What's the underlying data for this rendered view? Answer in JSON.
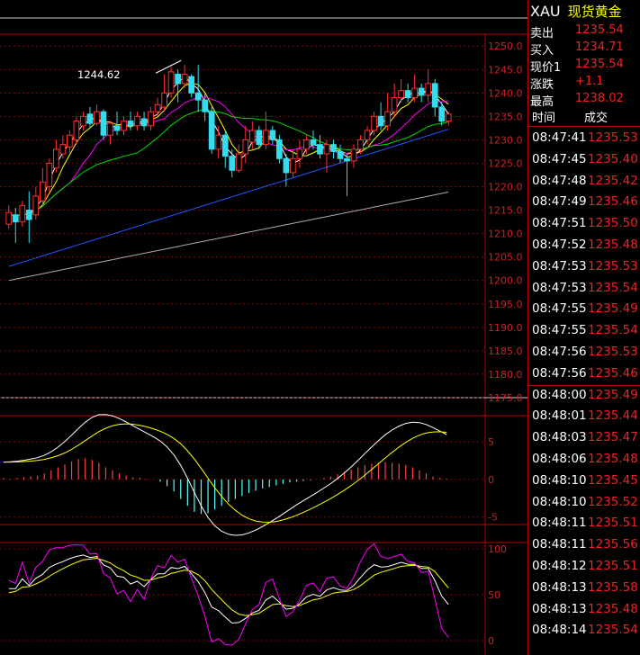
{
  "chart_data": {
    "type": "candlestick",
    "main": {
      "y_ticks": [
        "1250.0",
        "1245.0",
        "1240.0",
        "1235.0",
        "1230.0",
        "1225.0",
        "1220.0",
        "1215.0",
        "1210.0",
        "1205.0",
        "1200.0",
        "1195.0",
        "1190.0",
        "1185.0",
        "1180.0",
        "1175.0"
      ],
      "ylim": [
        1175,
        1251
      ],
      "annotation": "1244.62",
      "candles": [
        {
          "o": 1212.0,
          "c": 1214.5,
          "h": 1216.0,
          "l": 1211.0
        },
        {
          "o": 1214.0,
          "c": 1212.5,
          "h": 1215.5,
          "l": 1208.0
        },
        {
          "o": 1212.5,
          "c": 1216.0,
          "h": 1217.0,
          "l": 1211.5
        },
        {
          "o": 1215.0,
          "c": 1213.0,
          "h": 1219.0,
          "l": 1208.0
        },
        {
          "o": 1214.0,
          "c": 1218.0,
          "h": 1220.0,
          "l": 1213.0
        },
        {
          "o": 1217.0,
          "c": 1221.0,
          "h": 1224.0,
          "l": 1216.0
        },
        {
          "o": 1220.0,
          "c": 1225.0,
          "h": 1226.0,
          "l": 1219.0
        },
        {
          "o": 1224.0,
          "c": 1228.0,
          "h": 1230.0,
          "l": 1223.0
        },
        {
          "o": 1227.0,
          "c": 1229.0,
          "h": 1231.0,
          "l": 1226.0
        },
        {
          "o": 1228.5,
          "c": 1231.0,
          "h": 1232.0,
          "l": 1227.0
        },
        {
          "o": 1230.0,
          "c": 1234.0,
          "h": 1235.0,
          "l": 1229.0
        },
        {
          "o": 1233.0,
          "c": 1235.0,
          "h": 1236.0,
          "l": 1232.0
        },
        {
          "o": 1235.5,
          "c": 1233.5,
          "h": 1237.0,
          "l": 1232.5
        },
        {
          "o": 1233.5,
          "c": 1236.0,
          "h": 1237.5,
          "l": 1233.0
        },
        {
          "o": 1236.0,
          "c": 1231.0,
          "h": 1236.5,
          "l": 1230.0
        },
        {
          "o": 1231.0,
          "c": 1233.5,
          "h": 1234.0,
          "l": 1229.0
        },
        {
          "o": 1233.0,
          "c": 1232.0,
          "h": 1236.0,
          "l": 1231.0
        },
        {
          "o": 1232.0,
          "c": 1234.0,
          "h": 1235.0,
          "l": 1231.0
        },
        {
          "o": 1234.0,
          "c": 1233.0,
          "h": 1236.0,
          "l": 1232.0
        },
        {
          "o": 1233.0,
          "c": 1235.0,
          "h": 1236.0,
          "l": 1232.0
        },
        {
          "o": 1234.5,
          "c": 1233.0,
          "h": 1236.0,
          "l": 1232.0
        },
        {
          "o": 1233.0,
          "c": 1236.0,
          "h": 1237.0,
          "l": 1232.0
        },
        {
          "o": 1236.0,
          "c": 1237.5,
          "h": 1239.0,
          "l": 1235.0
        },
        {
          "o": 1237.0,
          "c": 1240.0,
          "h": 1244.0,
          "l": 1236.0
        },
        {
          "o": 1240.0,
          "c": 1244.5,
          "h": 1245.5,
          "l": 1239.0
        },
        {
          "o": 1244.0,
          "c": 1242.0,
          "h": 1245.0,
          "l": 1238.0
        },
        {
          "o": 1242.0,
          "c": 1244.0,
          "h": 1246.0,
          "l": 1241.0
        },
        {
          "o": 1243.5,
          "c": 1240.0,
          "h": 1244.0,
          "l": 1239.0
        },
        {
          "o": 1240.0,
          "c": 1238.5,
          "h": 1246.0,
          "l": 1236.0
        },
        {
          "o": 1238.5,
          "c": 1236.0,
          "h": 1240.0,
          "l": 1234.0
        },
        {
          "o": 1236.0,
          "c": 1228.0,
          "h": 1237.0,
          "l": 1227.0
        },
        {
          "o": 1228.0,
          "c": 1231.0,
          "h": 1233.0,
          "l": 1226.0
        },
        {
          "o": 1231.0,
          "c": 1226.5,
          "h": 1232.0,
          "l": 1224.0
        },
        {
          "o": 1226.5,
          "c": 1223.5,
          "h": 1228.0,
          "l": 1222.0
        },
        {
          "o": 1223.5,
          "c": 1227.0,
          "h": 1229.0,
          "l": 1223.0
        },
        {
          "o": 1227.0,
          "c": 1230.0,
          "h": 1233.0,
          "l": 1225.0
        },
        {
          "o": 1229.5,
          "c": 1232.0,
          "h": 1234.0,
          "l": 1228.0
        },
        {
          "o": 1232.0,
          "c": 1229.0,
          "h": 1233.0,
          "l": 1228.0
        },
        {
          "o": 1229.0,
          "c": 1232.0,
          "h": 1236.0,
          "l": 1228.0
        },
        {
          "o": 1232.0,
          "c": 1230.0,
          "h": 1233.0,
          "l": 1229.0
        },
        {
          "o": 1230.0,
          "c": 1226.0,
          "h": 1231.0,
          "l": 1225.0
        },
        {
          "o": 1226.0,
          "c": 1223.0,
          "h": 1227.0,
          "l": 1220.0
        },
        {
          "o": 1223.0,
          "c": 1226.0,
          "h": 1228.0,
          "l": 1222.0
        },
        {
          "o": 1226.0,
          "c": 1228.0,
          "h": 1230.0,
          "l": 1224.0
        },
        {
          "o": 1228.0,
          "c": 1230.0,
          "h": 1231.0,
          "l": 1227.0
        },
        {
          "o": 1230.0,
          "c": 1229.0,
          "h": 1232.0,
          "l": 1228.0
        },
        {
          "o": 1229.0,
          "c": 1227.0,
          "h": 1231.0,
          "l": 1226.0
        },
        {
          "o": 1227.0,
          "c": 1229.0,
          "h": 1230.0,
          "l": 1223.0
        },
        {
          "o": 1229.0,
          "c": 1227.5,
          "h": 1230.0,
          "l": 1226.0
        },
        {
          "o": 1227.5,
          "c": 1226.0,
          "h": 1229.0,
          "l": 1225.0
        },
        {
          "o": 1226.0,
          "c": 1225.5,
          "h": 1227.0,
          "l": 1218.0
        },
        {
          "o": 1225.5,
          "c": 1228.0,
          "h": 1229.0,
          "l": 1224.0
        },
        {
          "o": 1228.0,
          "c": 1230.0,
          "h": 1231.0,
          "l": 1227.0
        },
        {
          "o": 1230.0,
          "c": 1232.0,
          "h": 1233.0,
          "l": 1229.0
        },
        {
          "o": 1232.0,
          "c": 1235.0,
          "h": 1236.0,
          "l": 1231.0
        },
        {
          "o": 1235.0,
          "c": 1233.0,
          "h": 1238.0,
          "l": 1232.0
        },
        {
          "o": 1233.0,
          "c": 1236.0,
          "h": 1240.0,
          "l": 1232.0
        },
        {
          "o": 1236.0,
          "c": 1239.0,
          "h": 1242.0,
          "l": 1235.0
        },
        {
          "o": 1239.0,
          "c": 1240.5,
          "h": 1243.0,
          "l": 1238.0
        },
        {
          "o": 1240.5,
          "c": 1239.0,
          "h": 1242.0,
          "l": 1238.0
        },
        {
          "o": 1239.0,
          "c": 1241.0,
          "h": 1244.0,
          "l": 1238.0
        },
        {
          "o": 1241.0,
          "c": 1239.5,
          "h": 1242.0,
          "l": 1238.0
        },
        {
          "o": 1239.5,
          "c": 1242.0,
          "h": 1245.0,
          "l": 1238.0
        },
        {
          "o": 1242.0,
          "c": 1237.0,
          "h": 1243.0,
          "l": 1235.0
        },
        {
          "o": 1237.0,
          "c": 1234.0,
          "h": 1238.0,
          "l": 1233.0
        },
        {
          "o": 1234.0,
          "c": 1235.5,
          "h": 1236.0,
          "l": 1233.0
        }
      ],
      "ma_colors": [
        "#ffffff",
        "#ffff00",
        "#ff00ff",
        "#00dd00",
        "#2255ff",
        "#aaaaaa"
      ]
    },
    "macd": {
      "y_ticks": [
        "5",
        "0",
        "-5"
      ],
      "ylim": [
        -6,
        8
      ],
      "hist": [
        0.2,
        0.1,
        0.2,
        0.3,
        0.4,
        0.5,
        0.8,
        1.2,
        1.6,
        2.0,
        2.4,
        2.7,
        2.8,
        2.6,
        2.2,
        1.6,
        1.2,
        0.8,
        0.5,
        0.3,
        0.2,
        0.1,
        0.0,
        -0.3,
        -0.9,
        -1.6,
        -2.6,
        -3.5,
        -4.3,
        -4.6,
        -4.5,
        -4.0,
        -3.5,
        -3.0,
        -2.6,
        -2.2,
        -1.8,
        -1.5,
        -1.2,
        -1.0,
        -0.8,
        -0.6,
        -0.4,
        -0.3,
        -0.2,
        -0.1,
        0.0,
        0.2,
        0.4,
        0.7,
        1.0,
        1.3,
        1.6,
        1.9,
        2.1,
        2.2,
        2.3,
        2.2,
        2.1,
        1.9,
        1.6,
        1.2,
        0.8,
        0.4,
        0.2,
        0.1
      ]
    },
    "kdj": {
      "y_ticks": [
        "100",
        "50",
        "0"
      ],
      "ylim": [
        0,
        115
      ]
    }
  },
  "quote": {
    "symbol": "XAU",
    "name": "现货黄金",
    "rows": [
      {
        "label": "卖出",
        "value": "1235.54"
      },
      {
        "label": "买入",
        "value": "1234.71"
      },
      {
        "label": "现价1",
        "value": "1235.54"
      },
      {
        "label": "涨跌",
        "value": "+1.1"
      },
      {
        "label": "最高",
        "value": "1238.02"
      }
    ]
  },
  "ticks_header": {
    "time": "时间",
    "price": "成交"
  },
  "ticks": [
    {
      "time": "08:47:41",
      "price": "1235.53"
    },
    {
      "time": "08:47:45",
      "price": "1235.40"
    },
    {
      "time": "08:47:48",
      "price": "1235.42"
    },
    {
      "time": "08:47:49",
      "price": "1235.46"
    },
    {
      "time": "08:47:51",
      "price": "1235.50"
    },
    {
      "time": "08:47:52",
      "price": "1235.48"
    },
    {
      "time": "08:47:53",
      "price": "1235.53"
    },
    {
      "time": "08:47:53",
      "price": "1235.54"
    },
    {
      "time": "08:47:55",
      "price": "1235.49"
    },
    {
      "time": "08:47:55",
      "price": "1235.54"
    },
    {
      "time": "08:47:56",
      "price": "1235.53"
    },
    {
      "time": "08:47:56",
      "price": "1235.46"
    },
    {
      "time": "08:48:00",
      "price": "1235.49"
    },
    {
      "time": "08:48:01",
      "price": "1235.44"
    },
    {
      "time": "08:48:03",
      "price": "1235.47"
    },
    {
      "time": "08:48:06",
      "price": "1235.48"
    },
    {
      "time": "08:48:10",
      "price": "1235.45"
    },
    {
      "time": "08:48:10",
      "price": "1235.52"
    },
    {
      "time": "08:48:11",
      "price": "1235.51"
    },
    {
      "time": "08:48:11",
      "price": "1235.56"
    },
    {
      "time": "08:48:12",
      "price": "1235.51"
    },
    {
      "time": "08:48:13",
      "price": "1235.58"
    },
    {
      "time": "08:48:13",
      "price": "1235.48"
    },
    {
      "time": "08:48:14",
      "price": "1235.54"
    }
  ]
}
